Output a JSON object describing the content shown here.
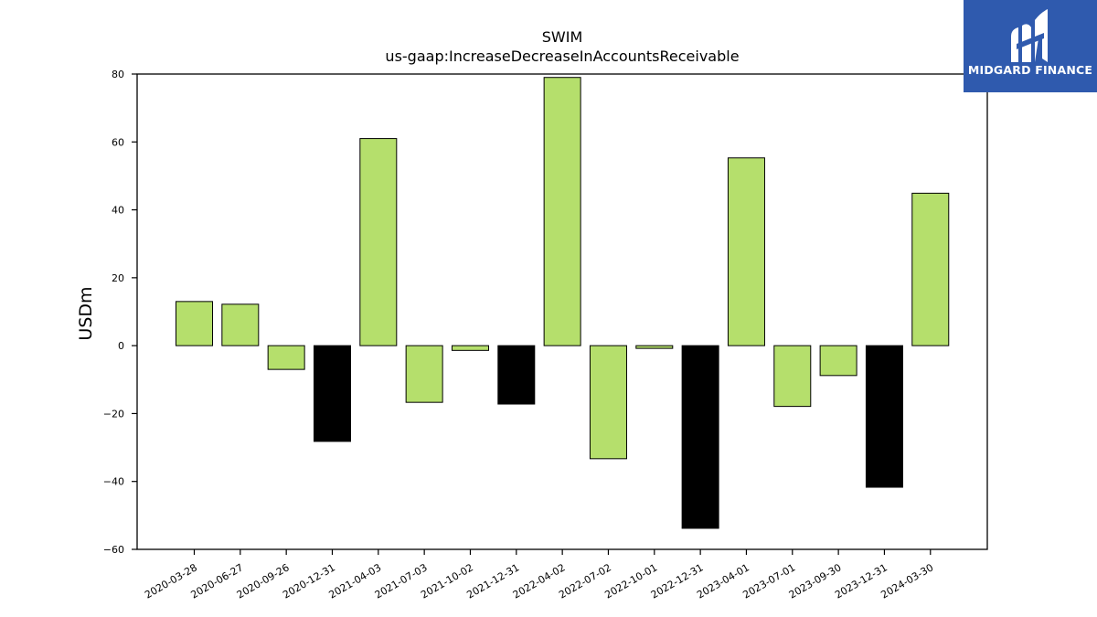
{
  "title": "SWIM",
  "subtitle": "us-gaap:IncreaseDecreaseInAccountsReceivable",
  "brand": {
    "name": "MIDGARD FINANCE",
    "logo_icon": "midgard-logo-icon",
    "color": "#2f5aae"
  },
  "colors": {
    "positive_bar": "#b5df6c",
    "q4_bar": "#000000",
    "axis": "#000000"
  },
  "chart_data": {
    "type": "bar",
    "title": "SWIM",
    "subtitle": "us-gaap:IncreaseDecreaseInAccountsReceivable",
    "xlabel": "",
    "ylabel": "USDm",
    "ylim": [
      -60,
      80
    ],
    "yticks": [
      80,
      60,
      40,
      20,
      0,
      -20,
      -40,
      -60
    ],
    "ytick_labels": [
      "80",
      "60",
      "40",
      "20",
      "0",
      "−20",
      "−40",
      "−60"
    ],
    "grid": false,
    "categories": [
      "2020-03-28",
      "2020-06-27",
      "2020-09-26",
      "2020-12-31",
      "2021-04-03",
      "2021-07-03",
      "2021-10-02",
      "2021-12-31",
      "2022-04-02",
      "2022-07-02",
      "2022-10-01",
      "2022-12-31",
      "2023-04-01",
      "2023-07-01",
      "2023-09-30",
      "2023-12-31",
      "2024-03-30"
    ],
    "values": [
      13.0,
      12.2,
      -7.0,
      -28.2,
      61.0,
      -16.7,
      -1.4,
      -17.2,
      79.0,
      -33.3,
      -0.8,
      -53.8,
      55.3,
      -17.9,
      -8.8,
      -41.7,
      44.9
    ],
    "bar_colors": [
      "#b5df6c",
      "#b5df6c",
      "#b5df6c",
      "#000000",
      "#b5df6c",
      "#b5df6c",
      "#b5df6c",
      "#000000",
      "#b5df6c",
      "#b5df6c",
      "#b5df6c",
      "#000000",
      "#b5df6c",
      "#b5df6c",
      "#b5df6c",
      "#000000",
      "#b5df6c"
    ]
  }
}
